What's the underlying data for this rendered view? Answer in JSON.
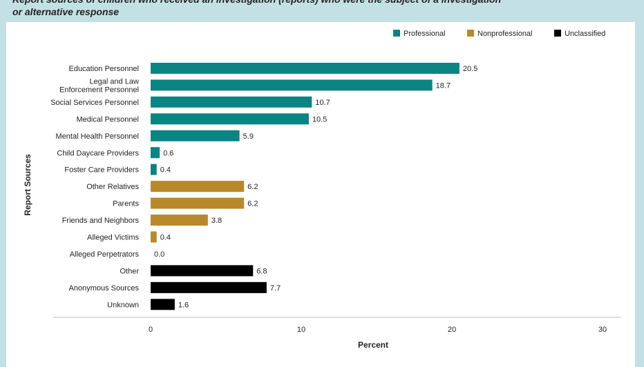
{
  "header": {
    "title_line1": "Report sources of children who received an investigation (reports) who were the subject of a investigation",
    "title_line2": "or alternative response"
  },
  "colors": {
    "professional": "#0a8583",
    "nonprofessional": "#b8892a",
    "unclassified": "#000000",
    "frame": "#c3e0e5"
  },
  "chart_data": {
    "type": "bar",
    "orientation": "horizontal",
    "title": "",
    "xlabel": "Percent",
    "ylabel": "Report Sources",
    "xlim": [
      0,
      30
    ],
    "xticks": [
      0,
      10,
      20,
      30
    ],
    "grid": false,
    "legend_position": "top-right",
    "legend": [
      {
        "name": "Professional",
        "color_key": "professional"
      },
      {
        "name": "Nonprofessional",
        "color_key": "nonprofessional"
      },
      {
        "name": "Unclassified",
        "color_key": "unclassified"
      }
    ],
    "bars": [
      {
        "category": [
          "Education Personnel"
        ],
        "value": 20.5,
        "label": "20.5",
        "group": "professional"
      },
      {
        "category": [
          "Legal and Law",
          "Enforcement Personnel"
        ],
        "value": 18.7,
        "label": "18.7",
        "group": "professional"
      },
      {
        "category": [
          "Social Services Personnel"
        ],
        "value": 10.7,
        "label": "10.7",
        "group": "professional"
      },
      {
        "category": [
          "Medical Personnel"
        ],
        "value": 10.5,
        "label": "10.5",
        "group": "professional"
      },
      {
        "category": [
          "Mental Health Personnel"
        ],
        "value": 5.9,
        "label": "5.9",
        "group": "professional"
      },
      {
        "category": [
          "Child Daycare Providers"
        ],
        "value": 0.6,
        "label": "0.6",
        "group": "professional"
      },
      {
        "category": [
          "Foster Care Providers"
        ],
        "value": 0.4,
        "label": "0.4",
        "group": "professional"
      },
      {
        "category": [
          "Other Relatives"
        ],
        "value": 6.2,
        "label": "6.2",
        "group": "nonprofessional"
      },
      {
        "category": [
          "Parents"
        ],
        "value": 6.2,
        "label": "6.2",
        "group": "nonprofessional"
      },
      {
        "category": [
          "Friends and Neighbors"
        ],
        "value": 3.8,
        "label": "3.8",
        "group": "nonprofessional"
      },
      {
        "category": [
          "Alleged Victims"
        ],
        "value": 0.4,
        "label": "0.4",
        "group": "nonprofessional"
      },
      {
        "category": [
          "Alleged Perpetrators"
        ],
        "value": 0.0,
        "label": "0.0",
        "group": "nonprofessional"
      },
      {
        "category": [
          "Other"
        ],
        "value": 6.8,
        "label": "6.8",
        "group": "unclassified"
      },
      {
        "category": [
          "Anonymous Sources"
        ],
        "value": 7.7,
        "label": "7.7",
        "group": "unclassified"
      },
      {
        "category": [
          "Unknown"
        ],
        "value": 1.6,
        "label": "1.6",
        "group": "unclassified"
      }
    ]
  }
}
